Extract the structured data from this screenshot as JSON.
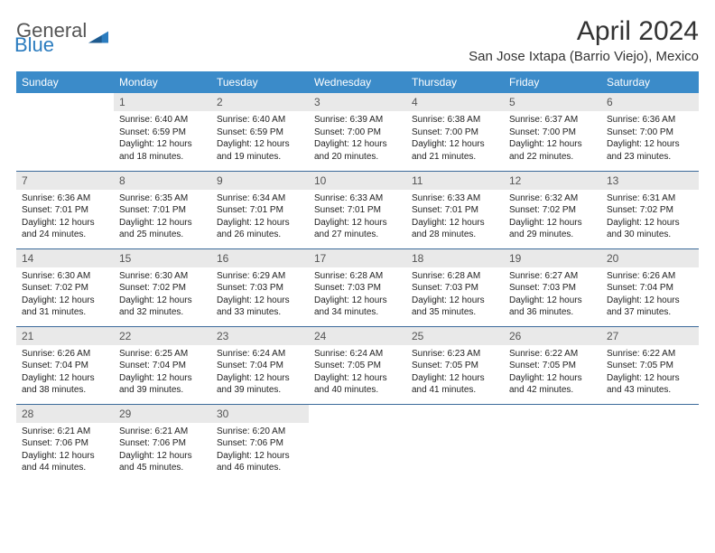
{
  "logo": {
    "text1": "General",
    "text2": "Blue",
    "color_general": "#555555",
    "color_blue": "#2b7cbf"
  },
  "title": "April 2024",
  "location": "San Jose Ixtapa (Barrio Viejo), Mexico",
  "colors": {
    "header_bg": "#3b8bc9",
    "header_fg": "#ffffff",
    "daynum_bg": "#e9e9e9",
    "row_divider": "#3b6a9a"
  },
  "weekdays": [
    "Sunday",
    "Monday",
    "Tuesday",
    "Wednesday",
    "Thursday",
    "Friday",
    "Saturday"
  ],
  "weeks": [
    [
      null,
      {
        "n": "1",
        "sr": "6:40 AM",
        "ss": "6:59 PM",
        "dl": "12 hours and 18 minutes."
      },
      {
        "n": "2",
        "sr": "6:40 AM",
        "ss": "6:59 PM",
        "dl": "12 hours and 19 minutes."
      },
      {
        "n": "3",
        "sr": "6:39 AM",
        "ss": "7:00 PM",
        "dl": "12 hours and 20 minutes."
      },
      {
        "n": "4",
        "sr": "6:38 AM",
        "ss": "7:00 PM",
        "dl": "12 hours and 21 minutes."
      },
      {
        "n": "5",
        "sr": "6:37 AM",
        "ss": "7:00 PM",
        "dl": "12 hours and 22 minutes."
      },
      {
        "n": "6",
        "sr": "6:36 AM",
        "ss": "7:00 PM",
        "dl": "12 hours and 23 minutes."
      }
    ],
    [
      {
        "n": "7",
        "sr": "6:36 AM",
        "ss": "7:01 PM",
        "dl": "12 hours and 24 minutes."
      },
      {
        "n": "8",
        "sr": "6:35 AM",
        "ss": "7:01 PM",
        "dl": "12 hours and 25 minutes."
      },
      {
        "n": "9",
        "sr": "6:34 AM",
        "ss": "7:01 PM",
        "dl": "12 hours and 26 minutes."
      },
      {
        "n": "10",
        "sr": "6:33 AM",
        "ss": "7:01 PM",
        "dl": "12 hours and 27 minutes."
      },
      {
        "n": "11",
        "sr": "6:33 AM",
        "ss": "7:01 PM",
        "dl": "12 hours and 28 minutes."
      },
      {
        "n": "12",
        "sr": "6:32 AM",
        "ss": "7:02 PM",
        "dl": "12 hours and 29 minutes."
      },
      {
        "n": "13",
        "sr": "6:31 AM",
        "ss": "7:02 PM",
        "dl": "12 hours and 30 minutes."
      }
    ],
    [
      {
        "n": "14",
        "sr": "6:30 AM",
        "ss": "7:02 PM",
        "dl": "12 hours and 31 minutes."
      },
      {
        "n": "15",
        "sr": "6:30 AM",
        "ss": "7:02 PM",
        "dl": "12 hours and 32 minutes."
      },
      {
        "n": "16",
        "sr": "6:29 AM",
        "ss": "7:03 PM",
        "dl": "12 hours and 33 minutes."
      },
      {
        "n": "17",
        "sr": "6:28 AM",
        "ss": "7:03 PM",
        "dl": "12 hours and 34 minutes."
      },
      {
        "n": "18",
        "sr": "6:28 AM",
        "ss": "7:03 PM",
        "dl": "12 hours and 35 minutes."
      },
      {
        "n": "19",
        "sr": "6:27 AM",
        "ss": "7:03 PM",
        "dl": "12 hours and 36 minutes."
      },
      {
        "n": "20",
        "sr": "6:26 AM",
        "ss": "7:04 PM",
        "dl": "12 hours and 37 minutes."
      }
    ],
    [
      {
        "n": "21",
        "sr": "6:26 AM",
        "ss": "7:04 PM",
        "dl": "12 hours and 38 minutes."
      },
      {
        "n": "22",
        "sr": "6:25 AM",
        "ss": "7:04 PM",
        "dl": "12 hours and 39 minutes."
      },
      {
        "n": "23",
        "sr": "6:24 AM",
        "ss": "7:04 PM",
        "dl": "12 hours and 39 minutes."
      },
      {
        "n": "24",
        "sr": "6:24 AM",
        "ss": "7:05 PM",
        "dl": "12 hours and 40 minutes."
      },
      {
        "n": "25",
        "sr": "6:23 AM",
        "ss": "7:05 PM",
        "dl": "12 hours and 41 minutes."
      },
      {
        "n": "26",
        "sr": "6:22 AM",
        "ss": "7:05 PM",
        "dl": "12 hours and 42 minutes."
      },
      {
        "n": "27",
        "sr": "6:22 AM",
        "ss": "7:05 PM",
        "dl": "12 hours and 43 minutes."
      }
    ],
    [
      {
        "n": "28",
        "sr": "6:21 AM",
        "ss": "7:06 PM",
        "dl": "12 hours and 44 minutes."
      },
      {
        "n": "29",
        "sr": "6:21 AM",
        "ss": "7:06 PM",
        "dl": "12 hours and 45 minutes."
      },
      {
        "n": "30",
        "sr": "6:20 AM",
        "ss": "7:06 PM",
        "dl": "12 hours and 46 minutes."
      },
      null,
      null,
      null,
      null
    ]
  ],
  "labels": {
    "sunrise": "Sunrise:",
    "sunset": "Sunset:",
    "daylight": "Daylight:"
  }
}
